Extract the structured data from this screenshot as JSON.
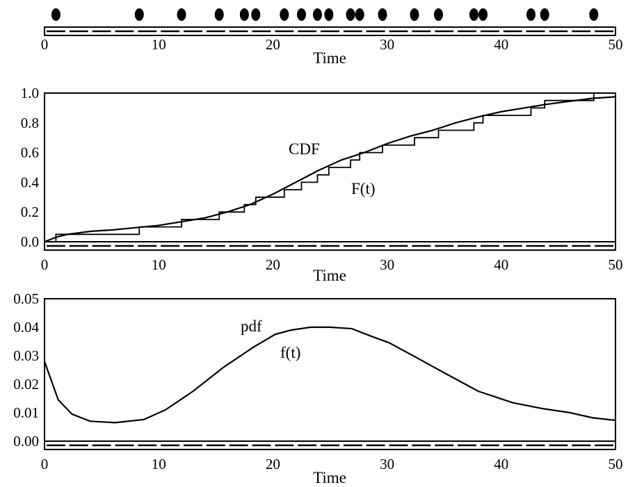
{
  "chart_data": [
    {
      "type": "scatter",
      "panel": "events",
      "xlabel": "Time",
      "xlim": [
        0,
        50
      ],
      "x_ticks": [
        0,
        10,
        20,
        30,
        40,
        50
      ],
      "events": [
        1.0,
        8.3,
        12.0,
        15.3,
        17.5,
        18.5,
        21.0,
        22.5,
        23.9,
        24.9,
        26.8,
        27.6,
        29.6,
        32.4,
        34.5,
        37.6,
        38.4,
        42.6,
        43.8,
        48.1
      ]
    },
    {
      "type": "line",
      "panel": "cdf",
      "xlabel": "Time",
      "xlim": [
        0,
        50
      ],
      "ylim": [
        0,
        1
      ],
      "x_ticks": [
        0,
        10,
        20,
        30,
        40,
        50
      ],
      "y_ticks": [
        "0.0",
        "0.2",
        "0.4",
        "0.6",
        "0.8",
        "1.0"
      ],
      "annotations": [
        "CDF",
        "F(t)"
      ],
      "step_events": [
        1.0,
        8.3,
        12.0,
        15.3,
        17.5,
        18.5,
        21.0,
        22.5,
        23.9,
        24.9,
        26.8,
        27.6,
        29.6,
        32.4,
        34.5,
        37.6,
        38.4,
        42.6,
        43.8,
        48.1
      ],
      "series": [
        {
          "x": [
            0,
            1,
            2,
            4,
            6,
            8,
            10,
            12,
            14,
            16,
            18,
            20,
            22,
            24,
            26,
            28,
            30,
            32,
            34,
            36,
            38,
            40,
            42,
            44,
            46,
            48,
            50
          ],
          "y": [
            0.0,
            0.03,
            0.05,
            0.07,
            0.08,
            0.095,
            0.11,
            0.135,
            0.16,
            0.2,
            0.25,
            0.32,
            0.4,
            0.48,
            0.55,
            0.6,
            0.66,
            0.71,
            0.75,
            0.8,
            0.84,
            0.875,
            0.9,
            0.925,
            0.945,
            0.965,
            0.975
          ]
        }
      ]
    },
    {
      "type": "line",
      "panel": "pdf",
      "xlabel": "Time",
      "xlim": [
        0,
        50
      ],
      "ylim": [
        0,
        0.05
      ],
      "x_ticks": [
        0,
        10,
        20,
        30,
        40,
        50
      ],
      "y_ticks": [
        "0.00",
        "0.01",
        "0.02",
        "0.03",
        "0.04",
        "0.05"
      ],
      "annotations": [
        "pdf",
        "f(t)"
      ],
      "series": [
        {
          "x": [
            0,
            1.2,
            2.4,
            4,
            6.2,
            8.7,
            10.6,
            13,
            15.7,
            18.3,
            20.2,
            21.6,
            23.3,
            25,
            26.9,
            28.5,
            30.2,
            32.5,
            35,
            38,
            41,
            43.5,
            46,
            48,
            50
          ],
          "y": [
            0.028,
            0.0145,
            0.0095,
            0.007,
            0.0065,
            0.0076,
            0.011,
            0.0175,
            0.026,
            0.033,
            0.0375,
            0.039,
            0.04,
            0.04,
            0.0395,
            0.037,
            0.0345,
            0.0295,
            0.024,
            0.0175,
            0.0135,
            0.0115,
            0.01,
            0.0082,
            0.0073
          ]
        }
      ]
    }
  ]
}
